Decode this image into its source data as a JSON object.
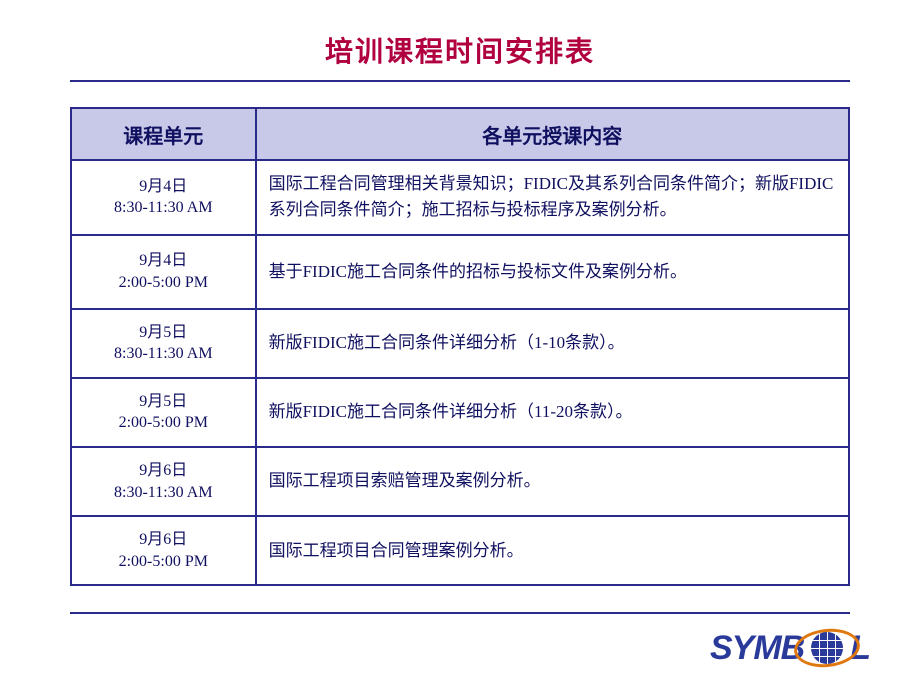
{
  "colors": {
    "title": "#b00040",
    "rule": "#2a2a8a",
    "table_border": "#2a2a8a",
    "header_bg": "#c8c8e8",
    "header_text": "#101060",
    "cell_text": "#101060",
    "logo_text": "#2a3a9a",
    "logo_ring": "#e07810",
    "globe_fill": "#2a3a9a",
    "globe_line": "#ffffff"
  },
  "title": "培训课程时间安排表",
  "headers": {
    "left": "课程单元",
    "right": "各单元授课内容"
  },
  "rows": [
    {
      "date": "9月4日",
      "time": "8:30-11:30 AM",
      "content": "国际工程合同管理相关背景知识；FIDIC及其系列合同条件简介；新版FIDIC系列合同条件简介；施工招标与投标程序及案例分析。",
      "tall": true
    },
    {
      "date": "9月4日",
      "time": "2:00-5:00 PM",
      "content": "基于FIDIC施工合同条件的招标与投标文件及案例分析。",
      "tall": true
    },
    {
      "date": "9月5日",
      "time": "8:30-11:30 AM",
      "content": "新版FIDIC施工合同条件详细分析（1-10条款）。",
      "tall": false
    },
    {
      "date": "9月5日",
      "time": "2:00-5:00 PM",
      "content": "新版FIDIC施工合同条件详细分析（11-20条款）。",
      "tall": false
    },
    {
      "date": "9月6日",
      "time": "8:30-11:30 AM",
      "content": "国际工程项目索赔管理及案例分析。",
      "tall": false
    },
    {
      "date": "9月6日",
      "time": "2:00-5:00 PM",
      "content": "国际工程项目合同管理案例分析。",
      "tall": false
    }
  ],
  "logo": {
    "pre": "SYMB",
    "post": "L"
  }
}
